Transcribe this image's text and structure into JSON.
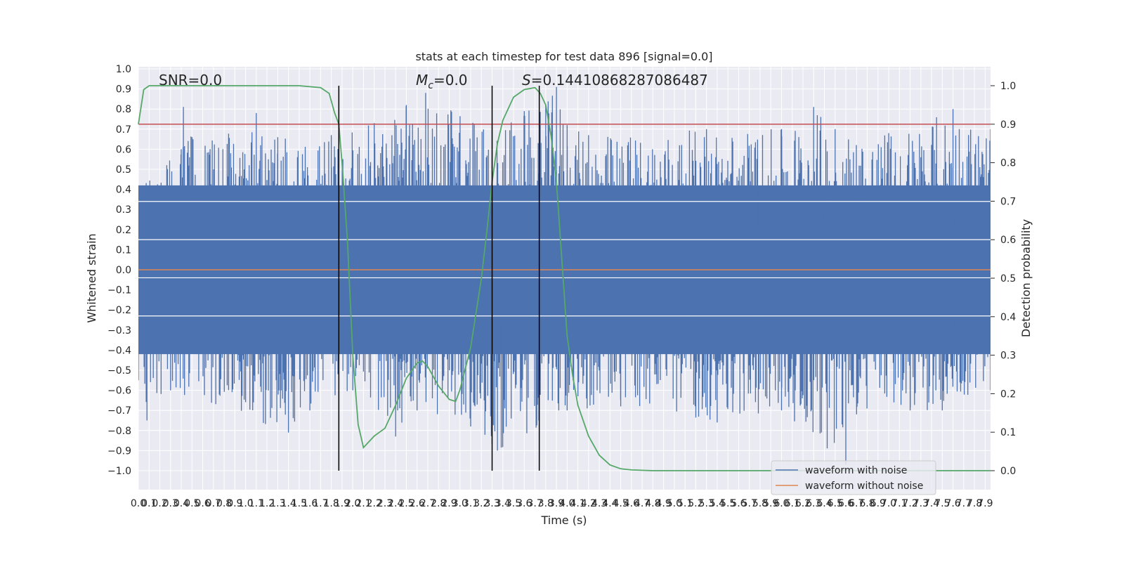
{
  "chart_data": {
    "type": "line",
    "title": "stats at each timestep for test data 896 [signal=0.0]",
    "xlabel": "Time (s)",
    "ylabel": "Whitened strain",
    "y2label": "Detection probability",
    "xlim": [
      0.0,
      7.95
    ],
    "ylim": [
      -1.09,
      1.02
    ],
    "y2lim": [
      -0.05,
      1.04
    ],
    "x_ticks": [
      0.0,
      0.1,
      0.2,
      0.3,
      0.4,
      0.5,
      0.6,
      0.7,
      0.8,
      0.9,
      1.0,
      1.1,
      1.2,
      1.3,
      1.4,
      1.5,
      1.6,
      1.7,
      1.8,
      1.9,
      2.0,
      2.1,
      2.2,
      2.3,
      2.4,
      2.5,
      2.6,
      2.7,
      2.8,
      2.9,
      3.0,
      3.1,
      3.2,
      3.3,
      3.4,
      3.5,
      3.6,
      3.7,
      3.8,
      3.9,
      4.0,
      4.1,
      4.2,
      4.3,
      4.4,
      4.5,
      4.6,
      4.7,
      4.8,
      4.9,
      5.0,
      5.1,
      5.2,
      5.3,
      5.4,
      5.5,
      5.6,
      5.7,
      5.8,
      5.9,
      6.0,
      6.1,
      6.2,
      6.3,
      6.4,
      6.5,
      6.6,
      6.7,
      6.8,
      6.9,
      7.0,
      7.1,
      7.2,
      7.3,
      7.4,
      7.5,
      7.6,
      7.7,
      7.8,
      7.9
    ],
    "y_ticks": [
      1.0,
      0.9,
      0.8,
      0.7,
      0.6,
      0.5,
      0.4,
      0.3,
      0.2,
      0.1,
      0.0,
      -0.1,
      -0.2,
      -0.3,
      -0.4,
      -0.5,
      -0.6,
      -0.7,
      -0.8,
      -0.9,
      -1.0
    ],
    "y2_ticks": [
      1.0,
      0.9,
      0.8,
      0.7,
      0.6,
      0.5,
      0.4,
      0.3,
      0.2,
      0.1,
      0.0
    ],
    "annotations": {
      "snr": "SNR=0.0",
      "mc": "M_c=0.0",
      "s": "S=0.14410868287086487"
    },
    "series": [
      {
        "name": "waveform with noise",
        "color": "#4c72b0",
        "envelope_top": [
          [
            0.0,
            0.4
          ],
          [
            0.4,
            0.6
          ],
          [
            0.42,
            0.81
          ],
          [
            0.5,
            0.66
          ],
          [
            1.1,
            0.78
          ],
          [
            1.3,
            0.66
          ],
          [
            1.8,
            0.67
          ],
          [
            2.2,
            0.73
          ],
          [
            2.5,
            0.82
          ],
          [
            2.68,
            0.88
          ],
          [
            3.3,
            0.72
          ],
          [
            3.6,
            0.79
          ],
          [
            3.8,
            0.82
          ],
          [
            3.9,
            0.91
          ],
          [
            4.0,
            0.72
          ],
          [
            4.2,
            0.67
          ],
          [
            5.3,
            0.7
          ],
          [
            6.0,
            0.7
          ],
          [
            6.3,
            0.81
          ],
          [
            6.5,
            0.7
          ],
          [
            7.0,
            0.68
          ],
          [
            7.6,
            0.8
          ],
          [
            7.95,
            0.7
          ]
        ],
        "envelope_bottom": [
          [
            0.0,
            -0.55
          ],
          [
            0.08,
            -0.75
          ],
          [
            0.3,
            -0.6
          ],
          [
            1.4,
            -0.81
          ],
          [
            1.6,
            -0.7
          ],
          [
            2.0,
            -0.6
          ],
          [
            2.4,
            -0.83
          ],
          [
            2.6,
            -0.7
          ],
          [
            3.1,
            -0.78
          ],
          [
            3.35,
            -0.9
          ],
          [
            4.0,
            -0.7
          ],
          [
            4.5,
            -0.68
          ],
          [
            5.4,
            -0.76
          ],
          [
            6.0,
            -0.7
          ],
          [
            6.6,
            -0.97
          ],
          [
            6.7,
            -0.72
          ],
          [
            7.2,
            -0.7
          ],
          [
            7.5,
            -0.7
          ],
          [
            7.95,
            -0.6
          ]
        ],
        "core_band": [
          -0.42,
          0.42
        ]
      },
      {
        "name": "waveform without noise",
        "color": "#dd8452",
        "x": [
          0.0,
          7.95
        ],
        "y": [
          0.0,
          0.0
        ]
      },
      {
        "name": "",
        "color": "#55a868",
        "axis": "right",
        "x": [
          0.0,
          0.05,
          0.1,
          0.2,
          0.5,
          1.0,
          1.5,
          1.7,
          1.78,
          1.83,
          1.87,
          1.9,
          1.95,
          2.0,
          2.05,
          2.1,
          2.2,
          2.3,
          2.4,
          2.5,
          2.6,
          2.65,
          2.7,
          2.8,
          2.9,
          2.96,
          3.0,
          3.1,
          3.2,
          3.25,
          3.3,
          3.35,
          3.4,
          3.5,
          3.6,
          3.7,
          3.75,
          3.8,
          3.85,
          3.9,
          3.95,
          4.0,
          4.05,
          4.1,
          4.2,
          4.3,
          4.4,
          4.5,
          4.6,
          4.8,
          5.0,
          6.0,
          7.0,
          7.95
        ],
        "y": [
          0.9,
          0.99,
          1.0,
          1.0,
          1.0,
          1.0,
          1.0,
          0.995,
          0.98,
          0.93,
          0.9,
          0.8,
          0.6,
          0.3,
          0.12,
          0.06,
          0.09,
          0.11,
          0.17,
          0.24,
          0.28,
          0.285,
          0.27,
          0.22,
          0.185,
          0.18,
          0.21,
          0.32,
          0.5,
          0.62,
          0.75,
          0.85,
          0.91,
          0.97,
          0.99,
          0.995,
          0.98,
          0.95,
          0.87,
          0.75,
          0.55,
          0.35,
          0.25,
          0.17,
          0.09,
          0.04,
          0.015,
          0.005,
          0.002,
          0.0,
          0.0,
          0.0,
          0.0,
          0.0
        ]
      }
    ],
    "threshold_line": {
      "color": "#c44e52",
      "y2": 0.9
    },
    "vertical_lines": [
      1.87,
      3.3,
      3.74
    ],
    "legend": {
      "placement": "lower-right",
      "entries": [
        "waveform with noise",
        "waveform without noise"
      ]
    },
    "grid": true
  }
}
